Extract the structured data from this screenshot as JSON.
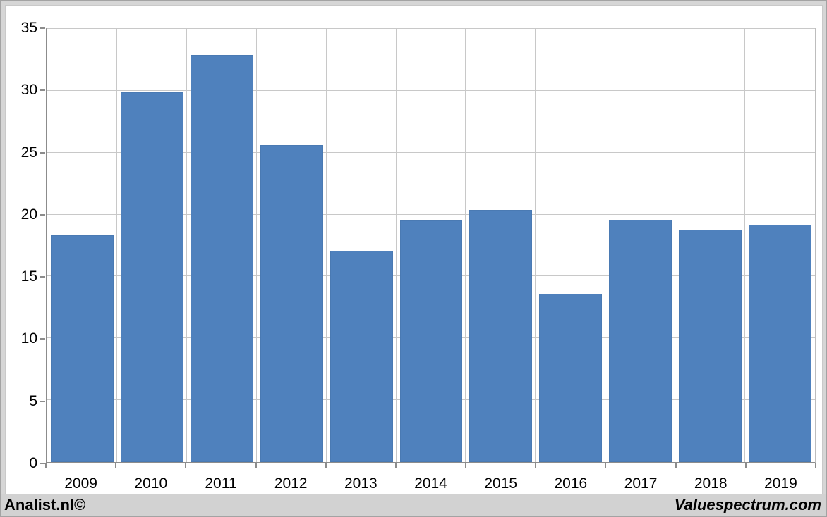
{
  "footer": {
    "left": "Analist.nl©",
    "right": "Valuespectrum.com"
  },
  "chart_data": {
    "type": "bar",
    "title": "",
    "xlabel": "",
    "ylabel": "",
    "categories": [
      "2009",
      "2010",
      "2011",
      "2012",
      "2013",
      "2014",
      "2015",
      "2016",
      "2017",
      "2018",
      "2019"
    ],
    "values": [
      18.3,
      29.9,
      32.9,
      25.6,
      17.1,
      19.5,
      20.4,
      13.6,
      19.6,
      18.8,
      19.2
    ],
    "ylim": [
      0,
      35
    ],
    "ytick_step": 5,
    "grid": true,
    "legend": "none",
    "bar_color": "#4f81bd",
    "bar_border_color": "#4a7ab3",
    "grid_color": "#c8c8c8",
    "axis_color": "#8c8c8c",
    "plot_bg_color": "#ffffff",
    "footer_bg_color": "#d2d2d2"
  }
}
